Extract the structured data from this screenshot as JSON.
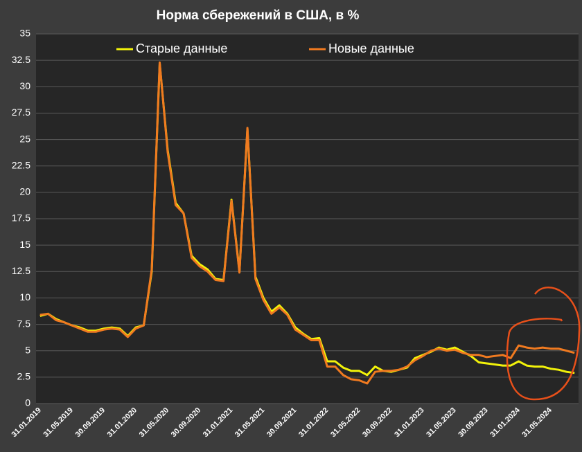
{
  "chart_data": {
    "type": "line",
    "title": "Норма сбережений в США, в %",
    "categories": [
      "31.01.2019",
      null,
      null,
      null,
      "31.05.2019",
      null,
      null,
      null,
      "30.09.2019",
      null,
      null,
      null,
      "31.01.2020",
      null,
      null,
      null,
      "31.05.2020",
      null,
      null,
      null,
      "30.09.2020",
      null,
      null,
      null,
      "31.01.2021",
      null,
      null,
      null,
      "31.05.2021",
      null,
      null,
      null,
      "30.09.2021",
      null,
      null,
      null,
      "31.01.2022",
      null,
      null,
      null,
      "31.05.2022",
      null,
      null,
      null,
      "30.09.2022",
      null,
      null,
      null,
      "31.01.2023",
      null,
      null,
      null,
      "31.05.2023",
      null,
      null,
      null,
      "30.09.2023",
      null,
      null,
      null,
      "31.01.2024",
      null,
      null,
      null,
      "31.05.2024",
      null,
      null,
      null
    ],
    "series": [
      {
        "name": "Старые данные",
        "color": "#f2f20a",
        "values": [
          8.3,
          8.5,
          8.0,
          7.7,
          7.4,
          7.2,
          6.9,
          6.9,
          7.1,
          7.2,
          7.1,
          6.4,
          7.2,
          7.4,
          12.5,
          32.2,
          24.0,
          19.0,
          18.0,
          14.0,
          13.2,
          12.7,
          11.8,
          11.7,
          19.3,
          12.5,
          26.0,
          12.0,
          10.0,
          8.7,
          9.3,
          8.5,
          7.2,
          6.6,
          6.1,
          6.2,
          4.0,
          4.0,
          3.4,
          3.1,
          3.1,
          2.7,
          3.5,
          3.1,
          3.0,
          3.2,
          3.4,
          4.3,
          4.6,
          4.9,
          5.3,
          5.1,
          5.3,
          4.9,
          4.5,
          3.9,
          3.8,
          3.7,
          3.6,
          3.6,
          4.0,
          3.6,
          3.5,
          3.5,
          3.3,
          3.2,
          3.0,
          2.9
        ]
      },
      {
        "name": "Новые данные",
        "color": "#f07a20",
        "values": [
          8.4,
          8.5,
          7.9,
          7.7,
          7.4,
          7.1,
          6.8,
          6.8,
          7.0,
          7.1,
          7.0,
          6.3,
          7.1,
          7.4,
          12.7,
          32.3,
          23.8,
          18.8,
          18.0,
          13.8,
          13.0,
          12.5,
          11.7,
          11.6,
          19.2,
          12.4,
          26.1,
          11.8,
          9.8,
          8.5,
          9.1,
          8.4,
          7.0,
          6.5,
          6.0,
          6.0,
          3.5,
          3.5,
          2.7,
          2.3,
          2.2,
          1.9,
          3.0,
          3.1,
          3.1,
          3.2,
          3.5,
          4.1,
          4.5,
          5.0,
          5.2,
          5.0,
          5.1,
          4.8,
          4.6,
          4.6,
          4.4,
          4.5,
          4.6,
          4.3,
          5.5,
          5.3,
          5.2,
          5.3,
          5.2,
          5.2,
          5.0,
          4.8
        ]
      }
    ],
    "ylim": [
      0,
      35
    ],
    "yticks": [
      0,
      2.5,
      5,
      7.5,
      10,
      12.5,
      15,
      17.5,
      20,
      22.5,
      25,
      27.5,
      30,
      32.5,
      35
    ],
    "grid": true,
    "legend": "upper center"
  }
}
